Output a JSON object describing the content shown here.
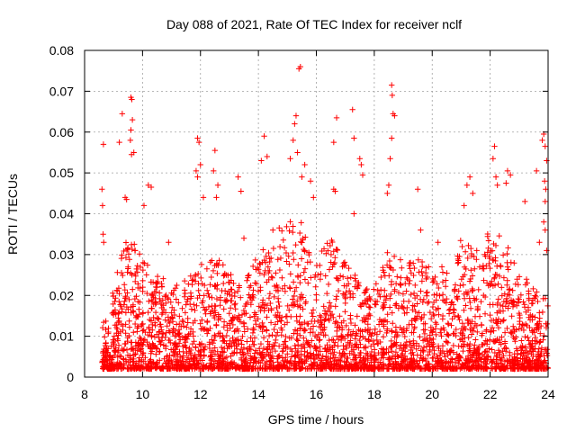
{
  "chart_data": {
    "type": "scatter",
    "title": "Day 088 of 2021, Rate Of TEC Index for receiver nclf",
    "xlabel": "GPS time / hours",
    "ylabel": "ROTI / TECUs",
    "xlim": [
      8,
      24
    ],
    "ylim": [
      0,
      0.08
    ],
    "xticks": [
      8,
      10,
      12,
      14,
      16,
      18,
      20,
      22,
      24
    ],
    "xtick_labels": [
      "8",
      "10",
      "12",
      "14",
      "16",
      "18",
      "20",
      "22",
      "24"
    ],
    "yticks": [
      0,
      0.01,
      0.02,
      0.03,
      0.04,
      0.05,
      0.06,
      0.07,
      0.08
    ],
    "ytick_labels": [
      "0",
      "0.01",
      "0.02",
      "0.03",
      "0.04",
      "0.05",
      "0.06",
      "0.07",
      "0.08"
    ],
    "grid": true,
    "marker": "+",
    "series_color": "#ff0000",
    "series": [
      {
        "name": "ROTI",
        "points": [
          [
            8.65,
            0.057
          ],
          [
            8.6,
            0.046
          ],
          [
            8.62,
            0.042
          ],
          [
            8.64,
            0.035
          ],
          [
            8.66,
            0.033
          ],
          [
            9.2,
            0.0575
          ],
          [
            9.3,
            0.0645
          ],
          [
            9.6,
            0.0685
          ],
          [
            9.63,
            0.068
          ],
          [
            9.65,
            0.063
          ],
          [
            9.6,
            0.0605
          ],
          [
            9.58,
            0.058
          ],
          [
            9.62,
            0.0545
          ],
          [
            9.7,
            0.055
          ],
          [
            9.4,
            0.044
          ],
          [
            9.45,
            0.0435
          ],
          [
            10.2,
            0.047
          ],
          [
            10.3,
            0.0465
          ],
          [
            10.05,
            0.042
          ],
          [
            10.9,
            0.033
          ],
          [
            11.9,
            0.0585
          ],
          [
            11.95,
            0.0575
          ],
          [
            12.0,
            0.052
          ],
          [
            11.85,
            0.0505
          ],
          [
            11.9,
            0.049
          ],
          [
            12.5,
            0.0555
          ],
          [
            12.45,
            0.0505
          ],
          [
            12.6,
            0.047
          ],
          [
            12.55,
            0.044
          ],
          [
            12.1,
            0.044
          ],
          [
            13.3,
            0.049
          ],
          [
            13.4,
            0.0455
          ],
          [
            13.5,
            0.034
          ],
          [
            14.1,
            0.053
          ],
          [
            14.2,
            0.059
          ],
          [
            14.3,
            0.054
          ],
          [
            14.5,
            0.036
          ],
          [
            15.3,
            0.064
          ],
          [
            15.25,
            0.062
          ],
          [
            15.4,
            0.0755
          ],
          [
            15.45,
            0.076
          ],
          [
            15.2,
            0.058
          ],
          [
            15.35,
            0.055
          ],
          [
            15.1,
            0.0535
          ],
          [
            15.6,
            0.052
          ],
          [
            15.5,
            0.049
          ],
          [
            15.8,
            0.048
          ],
          [
            15.9,
            0.044
          ],
          [
            16.6,
            0.0575
          ],
          [
            16.7,
            0.0635
          ],
          [
            16.6,
            0.046
          ],
          [
            16.65,
            0.0455
          ],
          [
            17.25,
            0.0655
          ],
          [
            17.3,
            0.0585
          ],
          [
            17.5,
            0.0535
          ],
          [
            17.55,
            0.052
          ],
          [
            17.6,
            0.0495
          ],
          [
            17.3,
            0.04
          ],
          [
            18.6,
            0.0715
          ],
          [
            18.62,
            0.069
          ],
          [
            18.65,
            0.0645
          ],
          [
            18.7,
            0.064
          ],
          [
            18.6,
            0.0585
          ],
          [
            18.55,
            0.0535
          ],
          [
            18.5,
            0.047
          ],
          [
            18.45,
            0.045
          ],
          [
            19.5,
            0.046
          ],
          [
            19.6,
            0.036
          ],
          [
            20.2,
            0.033
          ],
          [
            21.3,
            0.049
          ],
          [
            21.2,
            0.047
          ],
          [
            21.4,
            0.045
          ],
          [
            21.1,
            0.042
          ],
          [
            22.15,
            0.0565
          ],
          [
            22.1,
            0.0535
          ],
          [
            22.2,
            0.049
          ],
          [
            22.25,
            0.047
          ],
          [
            22.6,
            0.0505
          ],
          [
            22.7,
            0.0495
          ],
          [
            22.55,
            0.0475
          ],
          [
            23.2,
            0.043
          ],
          [
            23.6,
            0.0505
          ],
          [
            23.85,
            0.0595
          ],
          [
            23.8,
            0.058
          ],
          [
            23.9,
            0.0565
          ],
          [
            23.95,
            0.053
          ],
          [
            23.88,
            0.048
          ],
          [
            23.92,
            0.046
          ],
          [
            23.9,
            0.043
          ],
          [
            23.85,
            0.038
          ],
          [
            23.9,
            0.036
          ],
          [
            23.7,
            0.033
          ],
          [
            23.95,
            0.031
          ]
        ],
        "dense_baseline_envelope": {
          "x": [
            8.6,
            9.0,
            9.5,
            10.0,
            10.5,
            11.0,
            11.5,
            12.0,
            12.5,
            13.0,
            13.5,
            14.0,
            14.5,
            15.0,
            15.5,
            16.0,
            16.5,
            17.0,
            17.5,
            18.0,
            18.5,
            19.0,
            19.5,
            20.0,
            20.5,
            21.0,
            21.5,
            22.0,
            22.5,
            23.0,
            23.5,
            24.0
          ],
          "y_min": [
            0.002,
            0.002,
            0.002,
            0.002,
            0.002,
            0.002,
            0.002,
            0.002,
            0.002,
            0.002,
            0.002,
            0.002,
            0.002,
            0.002,
            0.002,
            0.002,
            0.002,
            0.002,
            0.002,
            0.002,
            0.002,
            0.002,
            0.002,
            0.002,
            0.002,
            0.002,
            0.002,
            0.002,
            0.002,
            0.002,
            0.002,
            0.002
          ],
          "y_max": [
            0.012,
            0.022,
            0.036,
            0.03,
            0.026,
            0.022,
            0.024,
            0.028,
            0.03,
            0.026,
            0.024,
            0.03,
            0.034,
            0.04,
            0.038,
            0.03,
            0.034,
            0.028,
            0.024,
            0.022,
            0.032,
            0.028,
            0.03,
            0.026,
            0.028,
            0.034,
            0.032,
            0.036,
            0.034,
            0.026,
            0.022,
            0.02
          ]
        }
      }
    ]
  }
}
